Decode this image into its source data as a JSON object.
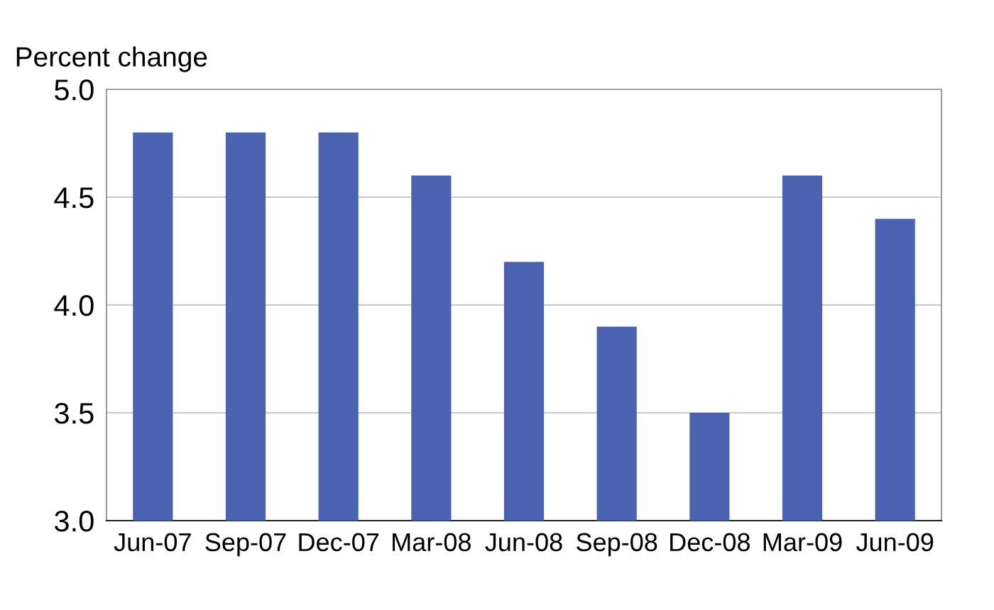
{
  "chart_data": {
    "type": "bar",
    "ylabel": "Percent change",
    "categories": [
      "Jun-07",
      "Sep-07",
      "Dec-07",
      "Mar-08",
      "Jun-08",
      "Sep-08",
      "Dec-08",
      "Mar-09",
      "Jun-09"
    ],
    "values": [
      4.8,
      4.8,
      4.8,
      4.6,
      4.2,
      3.9,
      3.5,
      4.6,
      4.4
    ],
    "color": "#4a62b0",
    "ylim": [
      3.0,
      5.0
    ],
    "yticks": [
      {
        "value": 3.0,
        "label": "3.0"
      },
      {
        "value": 3.5,
        "label": "3.5"
      },
      {
        "value": 4.0,
        "label": "4.0"
      },
      {
        "value": 4.5,
        "label": "4.5"
      },
      {
        "value": 5.0,
        "label": "5.0"
      }
    ],
    "grid": "y",
    "legend": false
  }
}
